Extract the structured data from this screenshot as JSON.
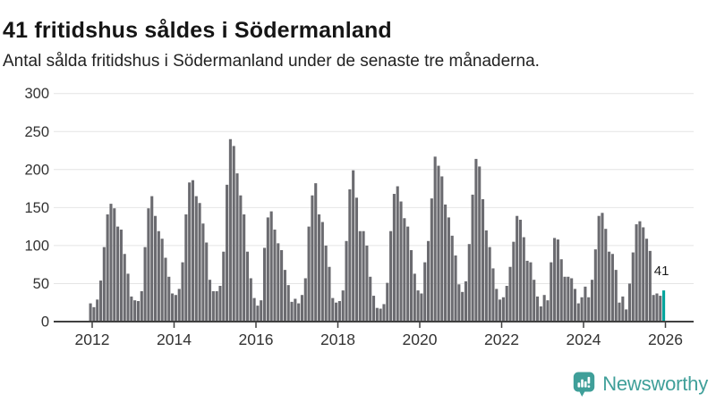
{
  "header": {
    "title": "41 fritidshus såldes i Södermanland",
    "subtitle": "Antal sålda fritidshus i Södermanland under de senaste tre månaderna."
  },
  "chart_data": {
    "type": "bar",
    "title": "41 fritidshus såldes i Södermanland",
    "subtitle": "Antal sålda fritidshus i Södermanland under de senaste tre månaderna.",
    "start_month": "2011-12",
    "frequency": "monthly",
    "values": [
      24,
      19,
      29,
      54,
      98,
      141,
      155,
      149,
      125,
      121,
      89,
      63,
      33,
      28,
      27,
      40,
      98,
      149,
      165,
      139,
      119,
      109,
      84,
      59,
      37,
      35,
      43,
      78,
      141,
      183,
      186,
      165,
      156,
      129,
      104,
      55,
      40,
      40,
      47,
      92,
      180,
      240,
      231,
      195,
      166,
      141,
      92,
      57,
      31,
      21,
      28,
      97,
      137,
      145,
      121,
      103,
      94,
      68,
      48,
      26,
      30,
      24,
      35,
      57,
      125,
      166,
      182,
      141,
      131,
      100,
      72,
      31,
      25,
      27,
      41,
      106,
      174,
      199,
      163,
      119,
      119,
      100,
      59,
      34,
      18,
      17,
      23,
      51,
      119,
      168,
      178,
      158,
      136,
      125,
      94,
      63,
      41,
      37,
      78,
      106,
      162,
      217,
      205,
      191,
      154,
      137,
      113,
      87,
      49,
      39,
      53,
      102,
      167,
      214,
      204,
      161,
      120,
      98,
      70,
      43,
      29,
      32,
      47,
      72,
      105,
      139,
      134,
      111,
      80,
      78,
      55,
      33,
      20,
      35,
      28,
      78,
      110,
      108,
      82,
      59,
      59,
      57,
      43,
      24,
      32,
      46,
      32,
      55,
      95,
      139,
      143,
      122,
      92,
      89,
      68,
      25,
      33,
      16,
      50,
      91,
      128,
      132,
      124,
      109,
      93,
      35,
      37,
      34,
      41
    ],
    "highlight": {
      "month": "2025-12",
      "value": 41,
      "label": "41",
      "color": "#00a49c"
    },
    "bar_color": "#6b6b70",
    "x_tick_labels": [
      "2012",
      "2014",
      "2016",
      "2018",
      "2020",
      "2022",
      "2024",
      "2026"
    ],
    "y_tick_labels": [
      "0",
      "50",
      "100",
      "150",
      "200",
      "250",
      "300"
    ],
    "y_ticks": [
      0,
      50,
      100,
      150,
      200,
      250,
      300
    ],
    "ylim": [
      0,
      300
    ],
    "grid": true,
    "legend": "none"
  },
  "footer": {
    "brand": "Newsworthy",
    "logo_icon": "bar-chart-speech-bubble-icon",
    "brand_color": "#3f9f99"
  },
  "colors": {
    "title": "#151515",
    "subtitle": "#222222",
    "axis_text": "#333333",
    "gridline": "#e4e4e4",
    "axis_line": "#404040",
    "background": "#ffffff"
  }
}
